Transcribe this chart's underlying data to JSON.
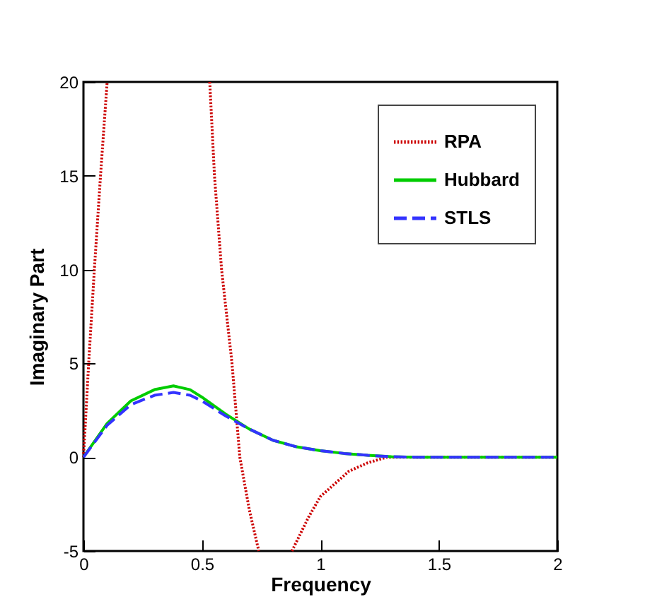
{
  "chart_data": {
    "type": "line",
    "xlabel": "Frequency",
    "ylabel": "Imaginary Part",
    "xlim": [
      0,
      2
    ],
    "xticks": [
      0,
      0.5,
      1,
      1.5,
      2
    ],
    "ylim": [
      -5,
      20
    ],
    "yticks": [
      -5,
      0,
      5,
      10,
      15,
      20
    ],
    "legend": "top right",
    "grid": false,
    "series": [
      {
        "name": "RPA",
        "color": "#cc0000",
        "line_style": "dotted",
        "x": [
          0,
          0.022,
          0.046,
          0.072,
          0.1,
          0.3,
          0.533,
          0.553,
          0.583,
          0.627,
          0.66,
          0.7,
          0.74,
          0.8,
          0.88,
          0.95,
          1.0,
          1.12,
          1.2,
          1.28,
          1.4,
          2
        ],
        "values": [
          0,
          5,
          10,
          15,
          20,
          null,
          20,
          15,
          10,
          5,
          0,
          -2.8,
          -5,
          null,
          -5,
          -3.2,
          -2.1,
          -0.75,
          -0.3,
          0,
          0,
          0
        ]
      },
      {
        "name": "Hubbard",
        "color": "#00cc00",
        "line_style": "solid",
        "x": [
          0,
          0.1,
          0.2,
          0.3,
          0.38,
          0.45,
          0.5,
          0.6,
          0.7,
          0.8,
          0.9,
          1.0,
          1.1,
          1.2,
          1.3,
          1.4,
          2
        ],
        "values": [
          0,
          1.8,
          3.0,
          3.6,
          3.8,
          3.6,
          3.2,
          2.3,
          1.5,
          0.9,
          0.55,
          0.35,
          0.2,
          0.1,
          0.03,
          0,
          0
        ]
      },
      {
        "name": "STLS",
        "color": "#3333ff",
        "line_style": "dashed",
        "x": [
          0,
          0.1,
          0.2,
          0.3,
          0.38,
          0.45,
          0.5,
          0.6,
          0.7,
          0.8,
          0.9,
          1.0,
          1.1,
          1.2,
          1.3,
          1.4,
          2
        ],
        "values": [
          0,
          1.7,
          2.8,
          3.3,
          3.45,
          3.3,
          3.0,
          2.2,
          1.5,
          0.9,
          0.55,
          0.35,
          0.2,
          0.1,
          0.03,
          0,
          0
        ]
      }
    ]
  }
}
